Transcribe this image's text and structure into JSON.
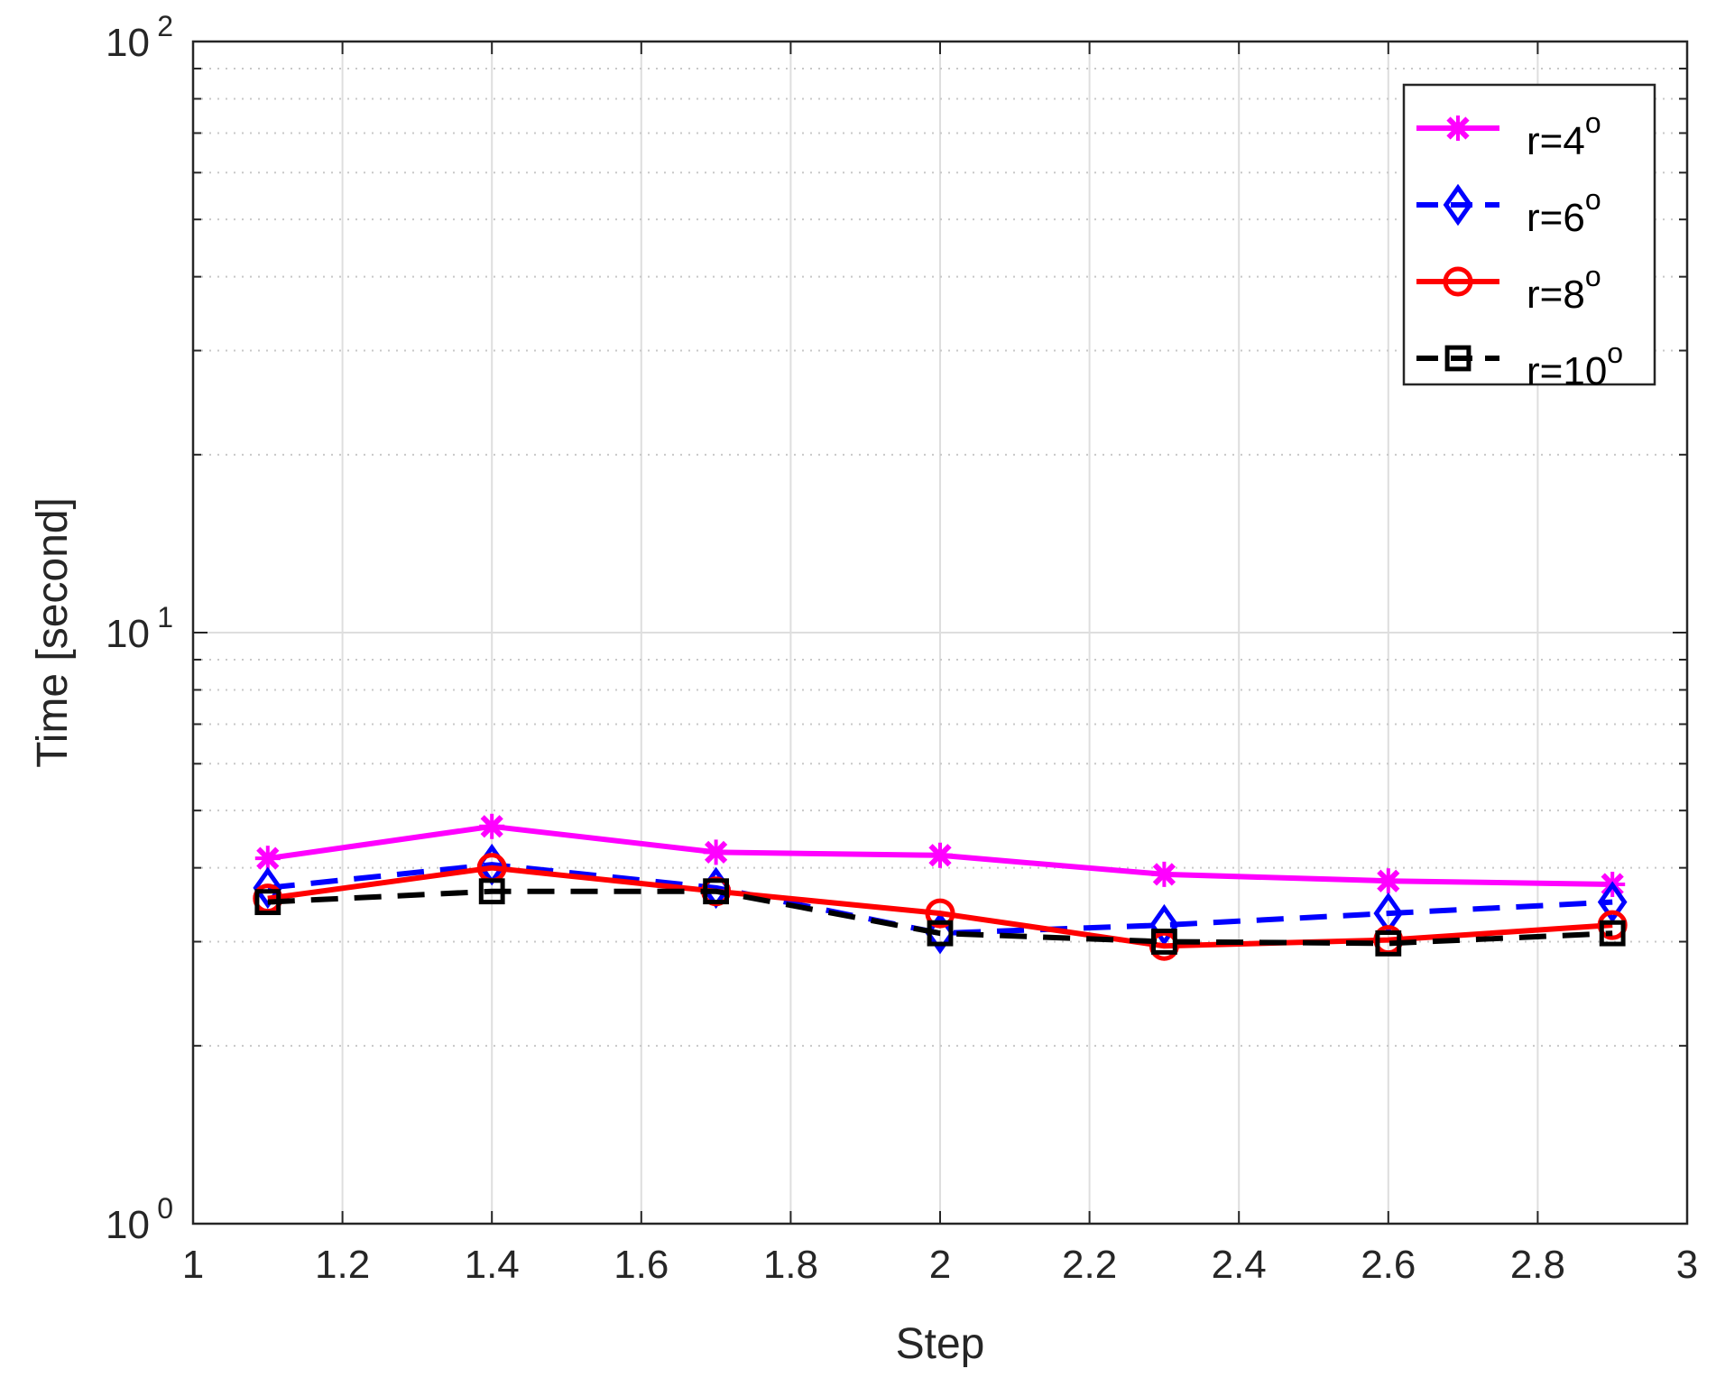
{
  "chart_data": {
    "type": "line",
    "xlabel": "Step",
    "ylabel": "Time [second]",
    "xlim": [
      1,
      3
    ],
    "ylim": [
      1,
      100
    ],
    "yscale": "log",
    "grid": true,
    "legend_position": "top-right",
    "x_ticks": [
      "1",
      "1.2",
      "1.4",
      "1.6",
      "1.8",
      "2",
      "2.2",
      "2.4",
      "2.6",
      "2.8",
      "3"
    ],
    "y_ticks": [
      {
        "base": "10",
        "exp": "0"
      },
      {
        "base": "10",
        "exp": "1"
      },
      {
        "base": "10",
        "exp": "2"
      }
    ],
    "x": [
      1.1,
      1.4,
      1.7,
      2.0,
      2.3,
      2.6,
      2.9
    ],
    "series": [
      {
        "name": "r=4",
        "name_sup": "o",
        "color": "#ff00ff",
        "dash": "solid",
        "marker": "x",
        "values": [
          4.15,
          4.7,
          4.25,
          4.2,
          3.9,
          3.8,
          3.75
        ]
      },
      {
        "name": "r=6",
        "name_sup": "o",
        "color": "#0000ff",
        "dash": "dashed",
        "marker": "diamond",
        "values": [
          3.7,
          4.05,
          3.7,
          3.1,
          3.2,
          3.35,
          3.5
        ]
      },
      {
        "name": "r=8",
        "name_sup": "o",
        "color": "#ff0000",
        "dash": "solid",
        "marker": "circle",
        "values": [
          3.55,
          4.0,
          3.65,
          3.35,
          2.95,
          3.02,
          3.2
        ]
      },
      {
        "name": "r=10",
        "name_sup": "o",
        "color": "#000000",
        "dash": "dashed",
        "marker": "square",
        "values": [
          3.5,
          3.65,
          3.65,
          3.1,
          3.0,
          2.98,
          3.1
        ]
      }
    ]
  }
}
